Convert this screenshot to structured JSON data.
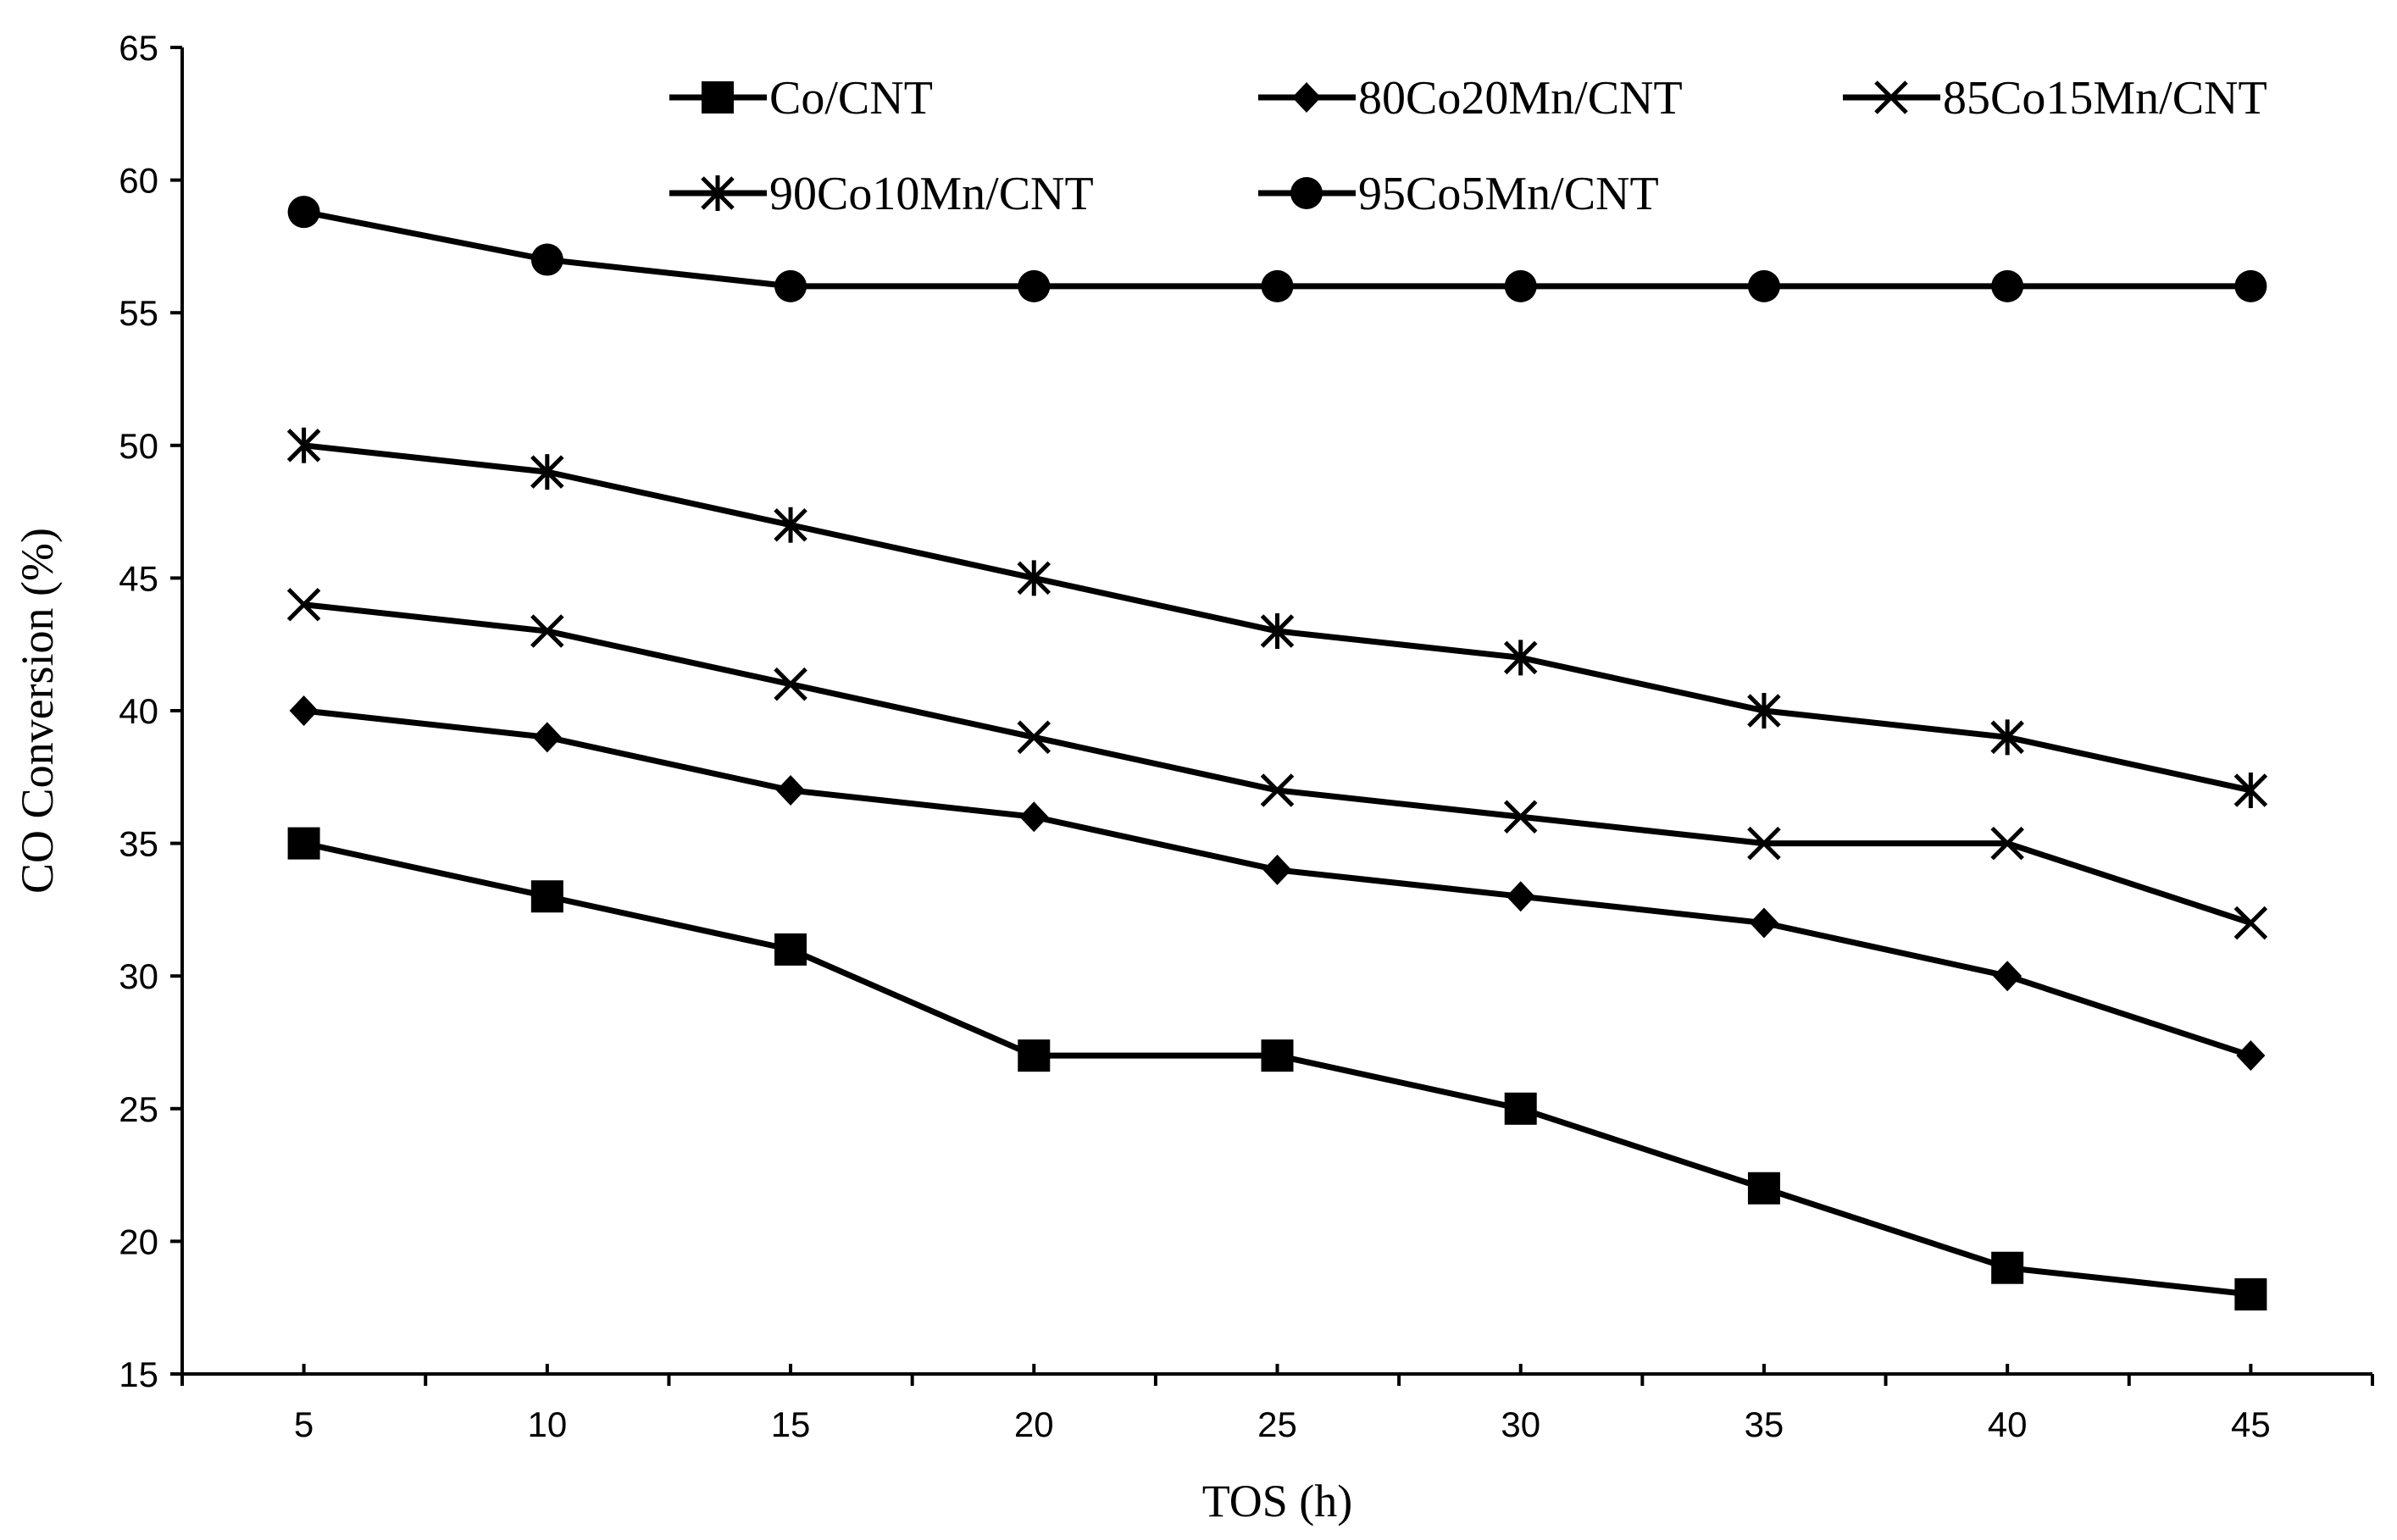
{
  "chart_data": {
    "type": "line",
    "title": "",
    "xlabel": "TOS (h)",
    "ylabel": "CO Conversion (%)",
    "x": [
      5,
      10,
      15,
      20,
      25,
      30,
      35,
      40,
      45
    ],
    "xlim": [
      2.5,
      47.5
    ],
    "ylim": [
      15,
      65
    ],
    "xticks": [
      5,
      10,
      15,
      20,
      25,
      30,
      35,
      40,
      45
    ],
    "yticks": [
      15,
      20,
      25,
      30,
      35,
      40,
      45,
      50,
      55,
      60,
      65
    ],
    "grid": false,
    "legend_position": "top",
    "series": [
      {
        "name": "Co/CNT",
        "marker": "square",
        "values": [
          35,
          33,
          31,
          27,
          27,
          25,
          22,
          19,
          18
        ]
      },
      {
        "name": "80Co20Mn/CNT",
        "marker": "diamond",
        "values": [
          40,
          39,
          37,
          36,
          34,
          33,
          32,
          30,
          27
        ]
      },
      {
        "name": "85Co15Mn/CNT",
        "marker": "x",
        "values": [
          44,
          43,
          41,
          39,
          37,
          36,
          35,
          35,
          32
        ]
      },
      {
        "name": "90Co10Mn/CNT",
        "marker": "asterisk",
        "values": [
          50,
          49,
          47,
          45,
          43,
          42,
          40,
          39,
          37
        ]
      },
      {
        "name": "95Co5Mn/CNT",
        "marker": "circle",
        "values": [
          58.8,
          57,
          56,
          56,
          56,
          56,
          56,
          56,
          56
        ]
      }
    ],
    "colors": {
      "line": "#000000",
      "background": "#ffffff"
    }
  }
}
